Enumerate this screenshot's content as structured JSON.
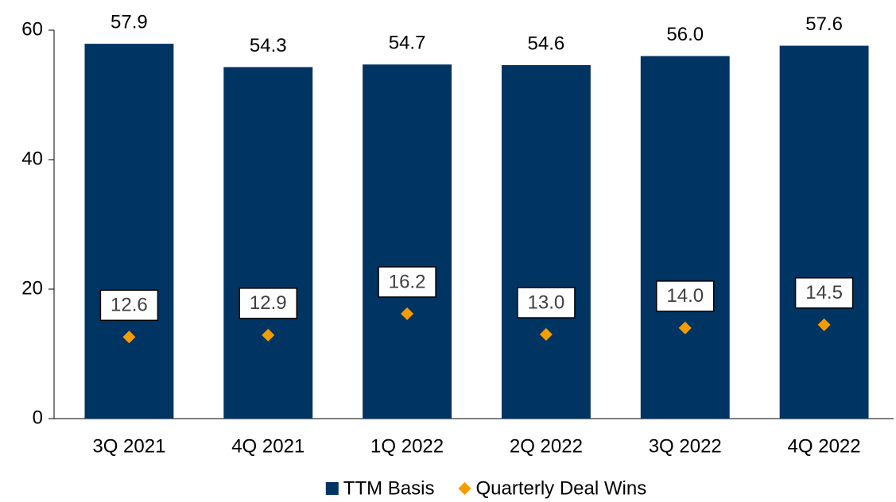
{
  "chart_data": {
    "type": "bar",
    "categories": [
      "3Q 2021",
      "4Q 2021",
      "1Q 2022",
      "2Q 2022",
      "3Q 2022",
      "4Q 2022"
    ],
    "series": [
      {
        "name": "TTM Basis",
        "color": "#003462",
        "values": [
          57.9,
          54.3,
          54.7,
          54.6,
          56.0,
          57.6
        ],
        "value_labels": [
          "57.9",
          "54.3",
          "54.7",
          "54.6",
          "56.0",
          "57.6"
        ]
      },
      {
        "name": "Quarterly Deal Wins",
        "type": "scatter",
        "color": "#f59d00",
        "values": [
          12.6,
          12.9,
          16.2,
          13.0,
          14.0,
          14.5
        ],
        "value_labels": [
          "12.6",
          "12.9",
          "16.2",
          "13.0",
          "14.0",
          "14.5"
        ]
      }
    ],
    "ylim": [
      0,
      60
    ],
    "yticks": [
      0,
      20,
      40,
      60
    ],
    "legend": "bottom"
  }
}
